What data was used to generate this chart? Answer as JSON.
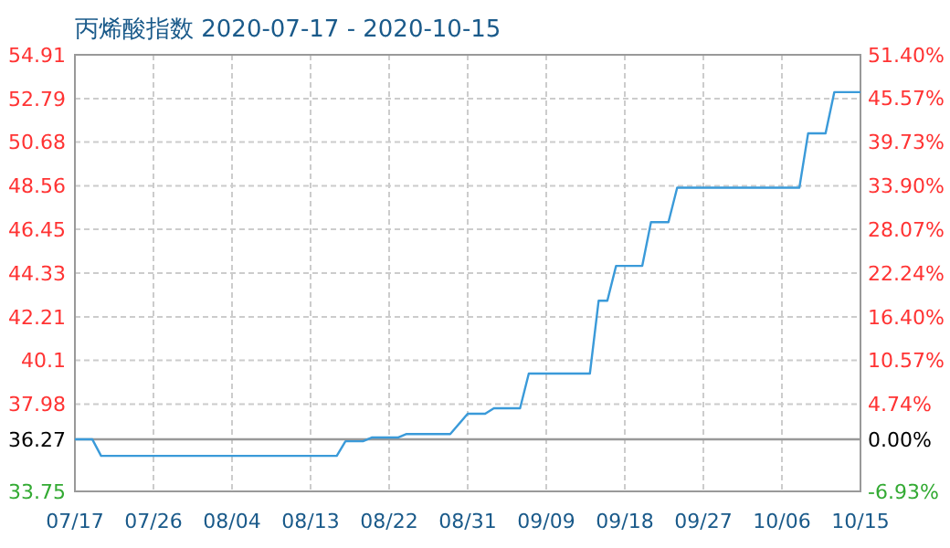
{
  "chart_data": {
    "type": "line",
    "title": "丙烯酸指数 2020-07-17 - 2020-10-15",
    "x": [
      "2020-07-17",
      "2020-07-19",
      "2020-07-20",
      "2020-08-16",
      "2020-08-17",
      "2020-08-19",
      "2020-08-20",
      "2020-08-23",
      "2020-08-24",
      "2020-08-29",
      "2020-08-31",
      "2020-09-02",
      "2020-09-03",
      "2020-09-06",
      "2020-09-07",
      "2020-09-14",
      "2020-09-15",
      "2020-09-16",
      "2020-09-17",
      "2020-09-20",
      "2020-09-21",
      "2020-09-23",
      "2020-09-24",
      "2020-10-08",
      "2020-10-09",
      "2020-10-11",
      "2020-10-12",
      "2020-10-15"
    ],
    "series": [
      {
        "color": "#3a9ad9",
        "values": [
          36.27,
          36.27,
          35.47,
          35.47,
          36.18,
          36.18,
          36.36,
          36.36,
          36.53,
          36.53,
          37.51,
          37.51,
          37.78,
          37.78,
          39.46,
          39.46,
          42.99,
          42.99,
          44.68,
          44.68,
          46.8,
          46.8,
          48.47,
          48.47,
          51.1,
          51.1,
          53.1,
          53.1
        ]
      }
    ],
    "xlim": [
      "2020-07-17",
      "2020-10-15"
    ],
    "xticks": [
      {
        "value": "2020-07-17",
        "label": "07/17"
      },
      {
        "value": "2020-07-26",
        "label": "07/26"
      },
      {
        "value": "2020-08-04",
        "label": "08/04"
      },
      {
        "value": "2020-08-13",
        "label": "08/13"
      },
      {
        "value": "2020-08-22",
        "label": "08/22"
      },
      {
        "value": "2020-08-31",
        "label": "08/31"
      },
      {
        "value": "2020-09-09",
        "label": "09/09"
      },
      {
        "value": "2020-09-18",
        "label": "09/18"
      },
      {
        "value": "2020-09-27",
        "label": "09/27"
      },
      {
        "value": "2020-10-06",
        "label": "10/06"
      },
      {
        "value": "2020-10-15",
        "label": "10/15"
      }
    ],
    "ylim": [
      33.75,
      54.91
    ],
    "yticks": [
      33.75,
      36.27,
      37.98,
      40.1,
      42.21,
      44.33,
      46.45,
      48.56,
      50.68,
      52.79,
      54.91
    ],
    "y2lim": [
      -6.93,
      51.4
    ],
    "y2ticks": [
      {
        "value": -6.93,
        "label": "-6.93%"
      },
      {
        "value": 0,
        "label": "0.00%"
      },
      {
        "value": 4.74,
        "label": "4.74%"
      },
      {
        "value": 10.57,
        "label": "10.57%"
      },
      {
        "value": 16.4,
        "label": "16.40%"
      },
      {
        "value": 22.24,
        "label": "22.24%"
      },
      {
        "value": 28.07,
        "label": "28.07%"
      },
      {
        "value": 33.9,
        "label": "33.90%"
      },
      {
        "value": 39.73,
        "label": "39.73%"
      },
      {
        "value": 45.57,
        "label": "45.57%"
      },
      {
        "value": 51.4,
        "label": "51.40%"
      }
    ],
    "ref_lines": [
      {
        "axis": "y",
        "value": 36.27,
        "color": "#999999"
      }
    ],
    "grid": true,
    "line_style": "solid"
  }
}
